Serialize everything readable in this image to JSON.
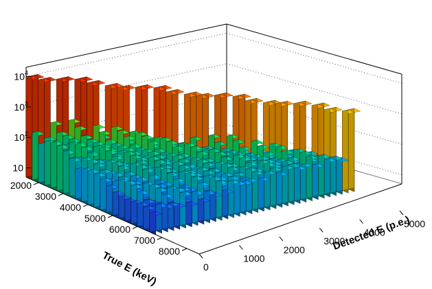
{
  "chart_data": {
    "type": "lego3d",
    "title": "",
    "xlabel": "True E (keV)",
    "ylabel": "Detected E (p.e.)",
    "zlabel": "",
    "z_scale": "log",
    "zlim": [
      5,
      20000
    ],
    "x_ticks": [
      "2000",
      "3000",
      "4000",
      "5000",
      "6000",
      "7000",
      "8000"
    ],
    "y_ticks": [
      "0",
      "1000",
      "2000",
      "3000",
      "4000",
      "5000"
    ],
    "z_ticks": [
      {
        "base": "10",
        "exp": ""
      },
      {
        "base": "10",
        "exp": "2"
      },
      {
        "base": "10",
        "exp": "3"
      },
      {
        "base": "10",
        "exp": "4"
      }
    ],
    "xlim": [
      1500,
      8500
    ],
    "ylim": [
      0,
      5000
    ],
    "x_bin_width": 250,
    "y_bin_width": 150,
    "ridge": {
      "description_free": true,
      "true_e_start": 1500,
      "true_e_end": 6600,
      "detected_e_start": 0,
      "detected_e_end": 4900,
      "peak_counts_start": 12000,
      "peak_counts_end": 2500,
      "tail_level_fraction": 0.04
    },
    "colormap": [
      "#6a00a8",
      "#2b2bff",
      "#00b0ff",
      "#00e070",
      "#7ee000",
      "#ffd000",
      "#ff5000",
      "#cc0000"
    ]
  }
}
